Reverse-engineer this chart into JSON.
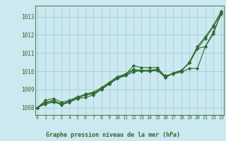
{
  "title": "Graphe pression niveau de la mer (hPa)",
  "xlabel_hours": [
    0,
    1,
    2,
    3,
    4,
    5,
    6,
    7,
    8,
    9,
    10,
    11,
    12,
    13,
    14,
    15,
    16,
    17,
    18,
    19,
    20,
    21,
    22,
    23
  ],
  "series": [
    [
      1008.0,
      1008.4,
      1008.5,
      1008.3,
      1008.4,
      1008.6,
      1008.7,
      1008.8,
      1009.0,
      1009.3,
      1009.6,
      1009.8,
      1010.3,
      1010.2,
      1010.2,
      1010.2,
      1009.7,
      1009.9,
      1010.0,
      1010.5,
      1011.35,
      1011.9,
      1012.5,
      1013.3
    ],
    [
      1008.0,
      1008.2,
      1008.3,
      1008.2,
      1008.3,
      1008.5,
      1008.55,
      1008.7,
      1009.0,
      1009.3,
      1009.6,
      1009.75,
      1009.95,
      1010.05,
      1010.05,
      1010.05,
      1009.75,
      1009.85,
      1009.95,
      1010.15,
      1010.15,
      1011.35,
      1012.05,
      1013.25
    ],
    [
      1008.0,
      1008.25,
      1008.35,
      1008.15,
      1008.3,
      1008.5,
      1008.7,
      1008.75,
      1009.05,
      1009.35,
      1009.65,
      1009.8,
      1010.05,
      1010.0,
      1010.0,
      1010.05,
      1009.65,
      1009.9,
      1010.05,
      1010.45,
      1011.25,
      1011.35,
      1012.15,
      1013.15
    ],
    [
      1008.0,
      1008.3,
      1008.4,
      1008.2,
      1008.35,
      1008.55,
      1008.75,
      1008.85,
      1009.1,
      1009.4,
      1009.7,
      1009.85,
      1010.1,
      1010.05,
      1010.05,
      1010.1,
      1009.65,
      1009.9,
      1010.05,
      1010.45,
      1011.25,
      1011.8,
      1012.45,
      1013.2
    ]
  ],
  "line_color": "#2d6a2d",
  "marker": "D",
  "marker_size": 2.2,
  "bg_color": "#cce8f0",
  "grid_color": "#99ccd5",
  "axis_color": "#2d6a2d",
  "tick_label_color": "#2d6a2d",
  "title_color": "#2d6a2d",
  "ylim": [
    1007.6,
    1013.6
  ],
  "yticks": [
    1008,
    1009,
    1010,
    1011,
    1012,
    1013
  ],
  "linewidth": 0.8
}
